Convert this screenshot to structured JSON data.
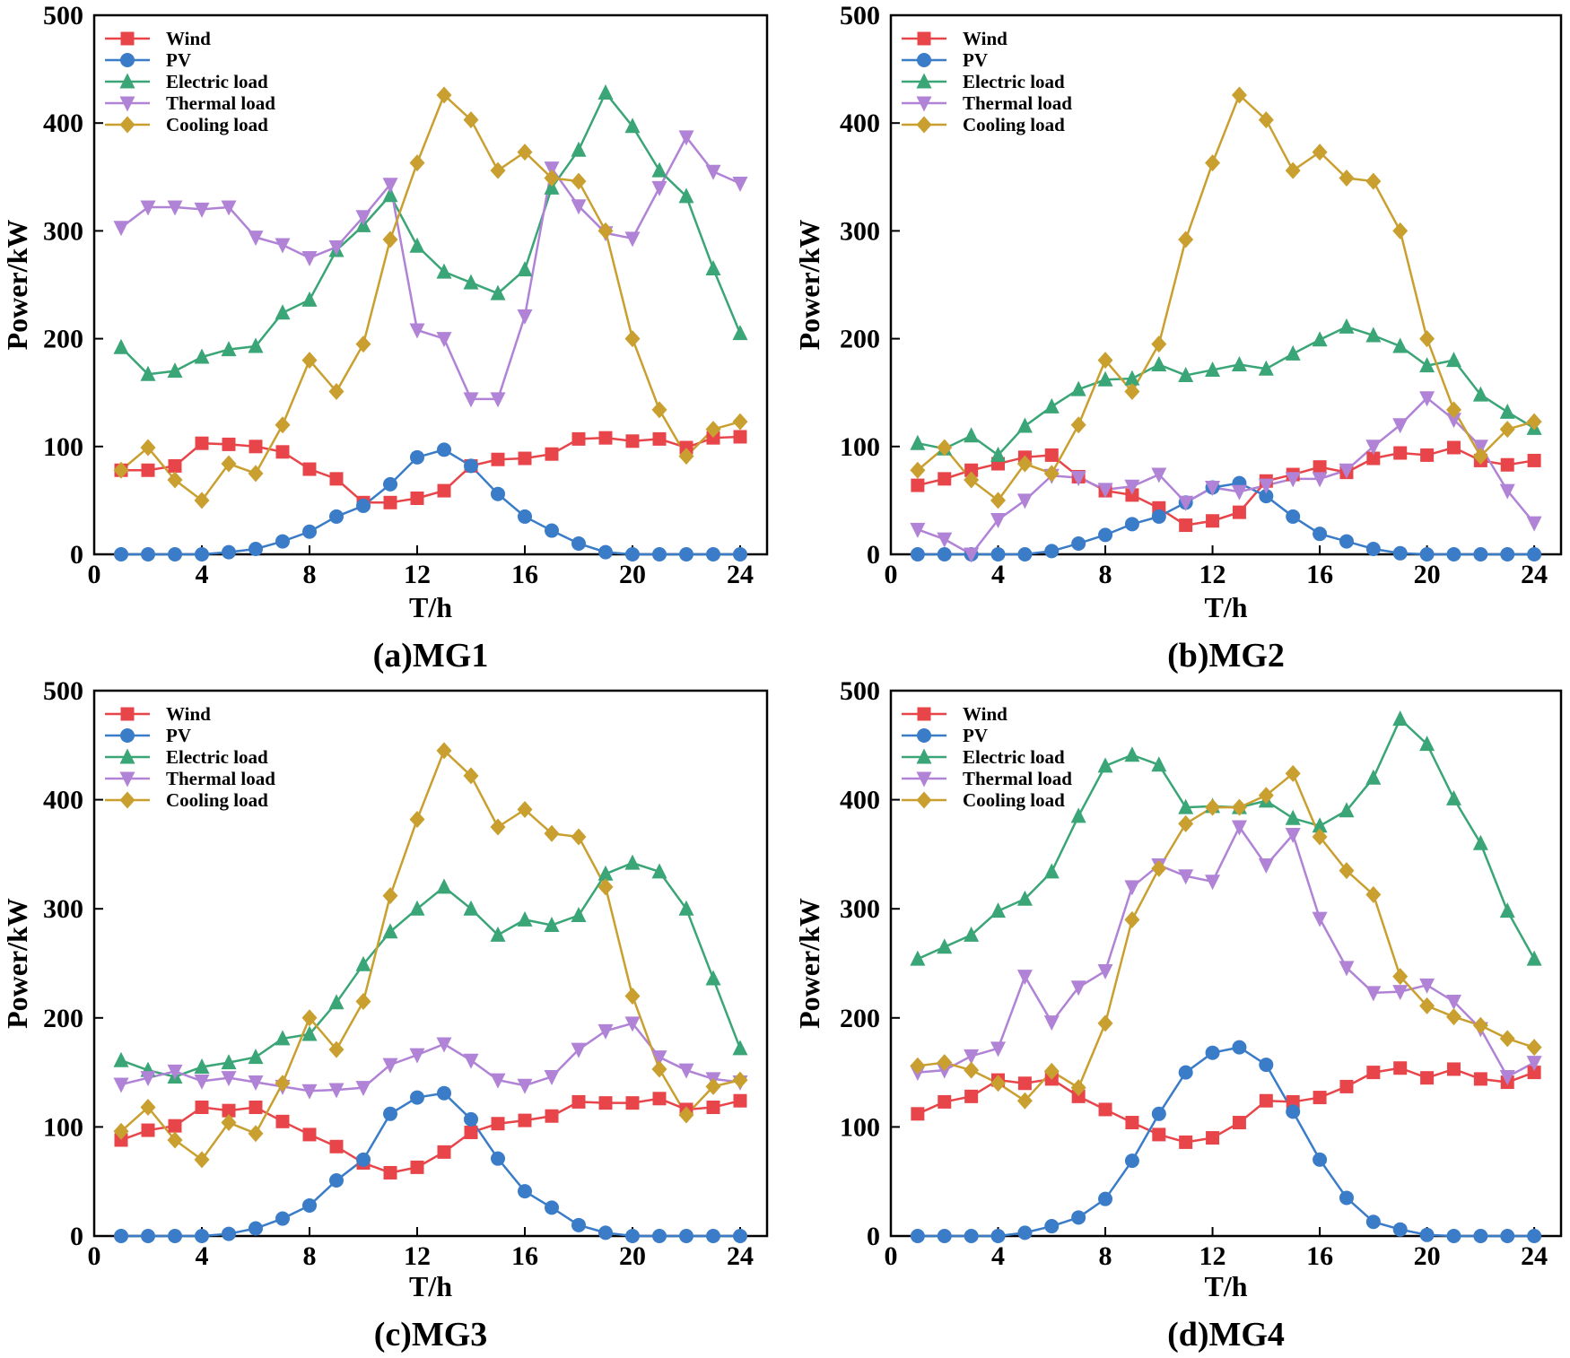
{
  "colors": {
    "wind": "#e8454a",
    "pv": "#3a7cc8",
    "electric": "#3aa576",
    "thermal": "#b083d6",
    "cooling": "#c9a030"
  },
  "chart_data": [
    {
      "type": "line",
      "caption": "(a)MG1",
      "xlabel": "T/h",
      "ylabel": "Power/kW",
      "xlim": [
        0,
        25
      ],
      "ylim": [
        0,
        500
      ],
      "xticks": [
        0,
        4,
        8,
        12,
        16,
        20,
        24
      ],
      "yticks": [
        0,
        100,
        200,
        300,
        400,
        500
      ],
      "x": [
        1,
        2,
        3,
        4,
        5,
        6,
        7,
        8,
        9,
        10,
        11,
        12,
        13,
        14,
        15,
        16,
        17,
        18,
        19,
        20,
        21,
        22,
        23,
        24
      ],
      "legend_position": "top-left",
      "series": [
        {
          "name": "Wind",
          "key": "wind",
          "marker": "square",
          "values": [
            78,
            78,
            82,
            103,
            102,
            100,
            95,
            79,
            70,
            48,
            48,
            52,
            59,
            82,
            88,
            89,
            93,
            107,
            108,
            105,
            107,
            99,
            108,
            109
          ]
        },
        {
          "name": "PV",
          "key": "pv",
          "marker": "circle",
          "values": [
            0,
            0,
            0,
            0,
            2,
            5,
            12,
            21,
            35,
            45,
            65,
            90,
            97,
            82,
            56,
            35,
            22,
            10,
            2,
            0,
            0,
            0,
            0,
            0
          ]
        },
        {
          "name": "Electric load",
          "key": "electric",
          "marker": "triangle-up",
          "values": [
            192,
            167,
            170,
            183,
            190,
            193,
            224,
            236,
            282,
            305,
            333,
            286,
            262,
            252,
            242,
            264,
            340,
            375,
            428,
            397,
            356,
            332,
            265,
            205
          ]
        },
        {
          "name": "Thermal load",
          "key": "thermal",
          "marker": "triangle-down",
          "values": [
            303,
            322,
            322,
            320,
            322,
            294,
            287,
            275,
            285,
            313,
            343,
            208,
            200,
            144,
            144,
            221,
            358,
            323,
            298,
            293,
            340,
            387,
            355,
            344
          ]
        },
        {
          "name": "Cooling load",
          "key": "cooling",
          "marker": "diamond",
          "values": [
            78,
            99,
            69,
            50,
            84,
            75,
            120,
            180,
            151,
            195,
            292,
            363,
            426,
            403,
            356,
            373,
            349,
            346,
            300,
            200,
            134,
            91,
            116,
            123
          ]
        }
      ]
    },
    {
      "type": "line",
      "caption": "(b)MG2",
      "xlabel": "T/h",
      "ylabel": "Power/kW",
      "xlim": [
        0,
        25
      ],
      "ylim": [
        0,
        500
      ],
      "xticks": [
        0,
        4,
        8,
        12,
        16,
        20,
        24
      ],
      "yticks": [
        0,
        100,
        200,
        300,
        400,
        500
      ],
      "x": [
        1,
        2,
        3,
        4,
        5,
        6,
        7,
        8,
        9,
        10,
        11,
        12,
        13,
        14,
        15,
        16,
        17,
        18,
        19,
        20,
        21,
        22,
        23,
        24
      ],
      "legend_position": "top-left",
      "series": [
        {
          "name": "Wind",
          "key": "wind",
          "marker": "square",
          "values": [
            64,
            70,
            78,
            84,
            90,
            92,
            72,
            59,
            55,
            43,
            27,
            31,
            39,
            68,
            74,
            81,
            76,
            89,
            94,
            92,
            99,
            87,
            83,
            87
          ]
        },
        {
          "name": "PV",
          "key": "pv",
          "marker": "circle",
          "values": [
            0,
            0,
            0,
            0,
            0,
            3,
            10,
            18,
            28,
            35,
            48,
            62,
            66,
            54,
            35,
            19,
            12,
            5,
            1,
            0,
            0,
            0,
            0,
            0
          ]
        },
        {
          "name": "Electric load",
          "key": "electric",
          "marker": "triangle-up",
          "values": [
            103,
            98,
            110,
            92,
            119,
            137,
            153,
            162,
            163,
            176,
            166,
            171,
            176,
            172,
            186,
            199,
            211,
            203,
            193,
            175,
            180,
            148,
            132,
            117
          ]
        },
        {
          "name": "Thermal load",
          "key": "thermal",
          "marker": "triangle-down",
          "values": [
            23,
            14,
            0,
            32,
            50,
            73,
            71,
            60,
            63,
            74,
            48,
            62,
            58,
            64,
            70,
            70,
            78,
            100,
            120,
            145,
            125,
            100,
            59,
            29
          ]
        },
        {
          "name": "Cooling load",
          "key": "cooling",
          "marker": "diamond",
          "values": [
            78,
            99,
            69,
            50,
            84,
            75,
            120,
            180,
            151,
            195,
            292,
            363,
            426,
            403,
            356,
            373,
            349,
            346,
            300,
            200,
            134,
            91,
            116,
            123
          ]
        }
      ]
    },
    {
      "type": "line",
      "caption": "(c)MG3",
      "xlabel": "T/h",
      "ylabel": "Power/kW",
      "xlim": [
        0,
        25
      ],
      "ylim": [
        0,
        500
      ],
      "xticks": [
        0,
        4,
        8,
        12,
        16,
        20,
        24
      ],
      "yticks": [
        0,
        100,
        200,
        300,
        400,
        500
      ],
      "x": [
        1,
        2,
        3,
        4,
        5,
        6,
        7,
        8,
        9,
        10,
        11,
        12,
        13,
        14,
        15,
        16,
        17,
        18,
        19,
        20,
        21,
        22,
        23,
        24
      ],
      "legend_position": "top-left",
      "series": [
        {
          "name": "Wind",
          "key": "wind",
          "marker": "square",
          "values": [
            88,
            97,
            101,
            118,
            115,
            118,
            105,
            93,
            82,
            67,
            58,
            63,
            77,
            95,
            103,
            106,
            110,
            123,
            122,
            122,
            126,
            116,
            118,
            124
          ]
        },
        {
          "name": "PV",
          "key": "pv",
          "marker": "circle",
          "values": [
            0,
            0,
            0,
            0,
            2,
            7,
            16,
            28,
            51,
            70,
            112,
            127,
            131,
            107,
            71,
            41,
            26,
            10,
            3,
            0,
            0,
            0,
            0,
            0
          ]
        },
        {
          "name": "Electric load",
          "key": "electric",
          "marker": "triangle-up",
          "values": [
            161,
            152,
            146,
            155,
            159,
            164,
            181,
            185,
            214,
            249,
            279,
            300,
            320,
            300,
            276,
            290,
            285,
            294,
            332,
            342,
            334,
            300,
            236,
            172
          ]
        },
        {
          "name": "Thermal load",
          "key": "thermal",
          "marker": "triangle-down",
          "values": [
            139,
            145,
            151,
            142,
            145,
            141,
            137,
            133,
            134,
            136,
            157,
            166,
            176,
            161,
            143,
            138,
            146,
            171,
            188,
            195,
            164,
            152,
            144,
            141
          ]
        },
        {
          "name": "Cooling load",
          "key": "cooling",
          "marker": "diamond",
          "values": [
            96,
            118,
            88,
            70,
            104,
            94,
            140,
            200,
            171,
            215,
            312,
            382,
            445,
            422,
            375,
            391,
            369,
            366,
            320,
            220,
            153,
            111,
            137,
            143
          ]
        }
      ]
    },
    {
      "type": "line",
      "caption": "(d)MG4",
      "xlabel": "T/h",
      "ylabel": "Power/kW",
      "xlim": [
        0,
        25
      ],
      "ylim": [
        0,
        500
      ],
      "xticks": [
        0,
        4,
        8,
        12,
        16,
        20,
        24
      ],
      "yticks": [
        0,
        100,
        200,
        300,
        400,
        500
      ],
      "x": [
        1,
        2,
        3,
        4,
        5,
        6,
        7,
        8,
        9,
        10,
        11,
        12,
        13,
        14,
        15,
        16,
        17,
        18,
        19,
        20,
        21,
        22,
        23,
        24
      ],
      "legend_position": "top-left",
      "series": [
        {
          "name": "Wind",
          "key": "wind",
          "marker": "square",
          "values": [
            112,
            123,
            128,
            143,
            140,
            144,
            128,
            116,
            104,
            93,
            86,
            90,
            104,
            124,
            123,
            127,
            137,
            150,
            154,
            145,
            153,
            144,
            141,
            150
          ]
        },
        {
          "name": "PV",
          "key": "pv",
          "marker": "circle",
          "values": [
            0,
            0,
            0,
            0,
            3,
            9,
            17,
            34,
            69,
            112,
            150,
            168,
            173,
            157,
            114,
            70,
            35,
            13,
            6,
            1,
            0,
            0,
            0,
            0
          ]
        },
        {
          "name": "Electric load",
          "key": "electric",
          "marker": "triangle-up",
          "values": [
            254,
            265,
            276,
            298,
            309,
            334,
            385,
            431,
            441,
            432,
            393,
            394,
            393,
            399,
            383,
            376,
            390,
            420,
            474,
            451,
            401,
            360,
            298,
            254
          ]
        },
        {
          "name": "Thermal load",
          "key": "thermal",
          "marker": "triangle-down",
          "values": [
            150,
            152,
            165,
            172,
            238,
            196,
            228,
            243,
            320,
            340,
            330,
            325,
            375,
            340,
            368,
            291,
            246,
            223,
            224,
            230,
            215,
            190,
            146,
            159
          ]
        },
        {
          "name": "Cooling load",
          "key": "cooling",
          "marker": "diamond",
          "values": [
            156,
            159,
            152,
            140,
            124,
            151,
            136,
            195,
            290,
            337,
            378,
            393,
            393,
            404,
            424,
            366,
            335,
            313,
            238,
            211,
            201,
            193,
            181,
            173
          ]
        }
      ]
    }
  ]
}
